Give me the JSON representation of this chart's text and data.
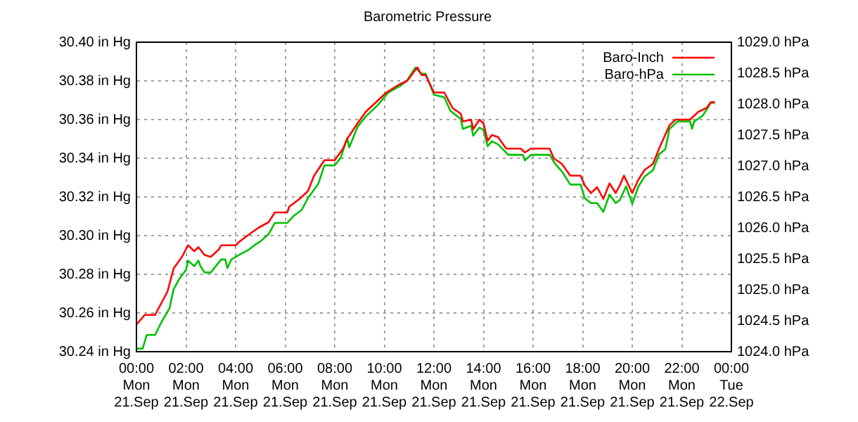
{
  "chart_data": {
    "type": "line",
    "title": "Barometric Pressure",
    "xlim": [
      "--09-21T00:00",
      "--09-22T00:00"
    ],
    "xticks": [
      {
        "value": "--09-21T00:00",
        "label": "00:00\nMon\n21.Sep"
      },
      {
        "value": "--09-21T02:00",
        "label": "02:00\nMon\n21.Sep"
      },
      {
        "value": "--09-21T04:00",
        "label": "04:00\nMon\n21.Sep"
      },
      {
        "value": "--09-21T06:00",
        "label": "06:00\nMon\n21.Sep"
      },
      {
        "value": "--09-21T08:00",
        "label": "08:00\nMon\n21.Sep"
      },
      {
        "value": "--09-21T10:00",
        "label": "10:00\nMon\n21.Sep"
      },
      {
        "value": "--09-21T12:00",
        "label": "12:00\nMon\n21.Sep"
      },
      {
        "value": "--09-21T14:00",
        "label": "14:00\nMon\n21.Sep"
      },
      {
        "value": "--09-21T16:00",
        "label": "16:00\nMon\n21.Sep"
      },
      {
        "value": "--09-21T18:00",
        "label": "18:00\nMon\n21.Sep"
      },
      {
        "value": "--09-21T20:00",
        "label": "20:00\nMon\n21.Sep"
      },
      {
        "value": "--09-21T22:00",
        "label": "22:00\nMon\n21.Sep"
      },
      {
        "value": "--09-22T00:00",
        "label": "00:00\nTue\n22.Sep"
      }
    ],
    "ylim": [
      30.24,
      30.4
    ],
    "yticks": [
      {
        "value": 30.24,
        "label": "30.24 in Hg"
      },
      {
        "value": 30.26,
        "label": "30.26 in Hg"
      },
      {
        "value": 30.28,
        "label": "30.28 in Hg"
      },
      {
        "value": 30.3,
        "label": "30.30 in Hg"
      },
      {
        "value": 30.32,
        "label": "30.32 in Hg"
      },
      {
        "value": 30.34,
        "label": "30.34 in Hg"
      },
      {
        "value": 30.36,
        "label": "30.36 in Hg"
      },
      {
        "value": 30.38,
        "label": "30.38 in Hg"
      },
      {
        "value": 30.4,
        "label": "30.40 in Hg"
      }
    ],
    "y2lim": [
      1024.0,
      1029.0
    ],
    "y2ticks": [
      {
        "value": 1024.0,
        "label": "1024.0 hPa"
      },
      {
        "value": 1024.5,
        "label": "1024.5 hPa"
      },
      {
        "value": 1025.0,
        "label": "1025.0 hPa"
      },
      {
        "value": 1025.5,
        "label": "1025.5 hPa"
      },
      {
        "value": 1026.0,
        "label": "1026.0 hPa"
      },
      {
        "value": 1026.5,
        "label": "1026.5 hPa"
      },
      {
        "value": 1027.0,
        "label": "1027.0 hPa"
      },
      {
        "value": 1027.5,
        "label": "1027.5 hPa"
      },
      {
        "value": 1028.0,
        "label": "1028.0 hPa"
      },
      {
        "value": 1028.5,
        "label": "1028.5 hPa"
      },
      {
        "value": 1029.0,
        "label": "1029.0 hPa"
      }
    ],
    "grid": true,
    "legend": "top right",
    "series": [
      {
        "name": "Baro-Inch",
        "color": "#ff0000",
        "x": [
          "--09-21T00:00",
          "--09-21T00:20",
          "--09-21T00:45",
          "--09-21T01:00",
          "--09-21T01:15",
          "--09-21T01:30",
          "--09-21T01:50",
          "--09-21T02:05",
          "--09-21T02:20",
          "--09-21T02:30",
          "--09-21T02:45",
          "--09-21T03:00",
          "--09-21T03:20",
          "--09-21T03:25",
          "--09-21T03:40",
          "--09-21T04:00",
          "--09-21T04:10",
          "--09-21T04:35",
          "--09-21T04:55",
          "--09-21T05:20",
          "--09-21T05:35",
          "--09-21T06:05",
          "--09-21T06:10",
          "--09-21T06:35",
          "--09-21T06:55",
          "--09-21T07:10",
          "--09-21T07:35",
          "--09-21T08:00",
          "--09-21T08:20",
          "--09-21T08:30",
          "--09-21T08:55",
          "--09-21T09:15",
          "--09-21T09:40",
          "--09-21T10:05",
          "--09-21T10:35",
          "--09-21T10:55",
          "--09-21T11:20",
          "--09-21T11:30",
          "--09-21T11:40",
          "--09-21T12:00",
          "--09-21T12:25",
          "--09-21T12:35",
          "--09-21T12:45",
          "--09-21T13:05",
          "--09-21T13:10",
          "--09-21T13:30",
          "--09-21T13:35",
          "--09-21T13:50",
          "--09-21T14:00",
          "--09-21T14:10",
          "--09-21T14:20",
          "--09-21T14:35",
          "--09-21T14:55",
          "--09-21T15:30",
          "--09-21T15:40",
          "--09-21T15:55",
          "--09-21T16:40",
          "--09-21T16:50",
          "--09-21T17:10",
          "--09-21T17:30",
          "--09-21T17:55",
          "--09-21T18:05",
          "--09-21T18:20",
          "--09-21T18:35",
          "--09-21T18:50",
          "--09-21T19:05",
          "--09-21T19:20",
          "--09-21T19:30",
          "--09-21T19:40",
          "--09-21T20:00",
          "--09-21T20:15",
          "--09-21T20:30",
          "--09-21T20:50",
          "--09-21T21:05",
          "--09-21T21:30",
          "--09-21T21:45",
          "--09-21T22:20",
          "--09-21T22:40",
          "--09-21T23:00",
          "--09-21T23:10",
          "--09-21T23:20"
        ],
        "values": [
          30.254,
          30.259,
          30.259,
          30.265,
          30.271,
          30.283,
          30.289,
          30.295,
          30.292,
          30.294,
          30.29,
          30.289,
          30.293,
          30.295,
          30.295,
          30.295,
          30.297,
          30.301,
          30.304,
          30.307,
          30.312,
          30.312,
          30.315,
          30.319,
          30.323,
          30.331,
          30.339,
          30.339,
          30.345,
          30.35,
          30.358,
          30.364,
          30.369,
          30.374,
          30.378,
          30.38,
          30.387,
          30.383,
          30.383,
          30.374,
          30.374,
          30.37,
          30.366,
          30.363,
          30.359,
          30.36,
          30.355,
          30.36,
          30.358,
          30.349,
          30.352,
          30.351,
          30.345,
          30.345,
          30.343,
          30.345,
          30.345,
          30.34,
          30.337,
          30.331,
          30.331,
          30.326,
          30.322,
          30.325,
          30.319,
          30.327,
          30.322,
          30.326,
          30.331,
          30.322,
          30.329,
          30.334,
          30.337,
          30.345,
          30.357,
          30.36,
          30.36,
          30.364,
          30.366,
          30.369,
          30.369
        ]
      },
      {
        "name": "Baro-hPa",
        "color": "#00c000",
        "axis": "y2",
        "x": [
          "--09-21T00:00",
          "--09-21T00:15",
          "--09-21T00:25",
          "--09-21T00:45",
          "--09-21T01:00",
          "--09-21T01:20",
          "--09-21T01:30",
          "--09-21T01:45",
          "--09-21T02:00",
          "--09-21T02:05",
          "--09-21T02:20",
          "--09-21T02:30",
          "--09-21T02:35",
          "--09-21T02:45",
          "--09-21T03:00",
          "--09-21T03:25",
          "--09-21T03:35",
          "--09-21T03:40",
          "--09-21T03:50",
          "--09-21T04:10",
          "--09-21T04:30",
          "--09-21T04:50",
          "--09-21T05:00",
          "--09-21T05:20",
          "--09-21T05:35",
          "--09-21T06:05",
          "--09-21T06:20",
          "--09-21T06:40",
          "--09-21T06:55",
          "--09-21T07:20",
          "--09-21T07:35",
          "--09-21T08:00",
          "--09-21T08:15",
          "--09-21T08:30",
          "--09-21T08:35",
          "--09-21T08:55",
          "--09-21T09:15",
          "--09-21T09:45",
          "--09-21T10:10",
          "--09-21T10:40",
          "--09-21T10:55",
          "--09-21T11:15",
          "--09-21T11:30",
          "--09-21T11:40",
          "--09-21T12:00",
          "--09-21T12:25",
          "--09-21T12:40",
          "--09-21T13:05",
          "--09-21T13:10",
          "--09-21T13:30",
          "--09-21T13:35",
          "--09-21T13:50",
          "--09-21T14:00",
          "--09-21T14:10",
          "--09-21T14:20",
          "--09-21T14:35",
          "--09-21T15:00",
          "--09-21T15:35",
          "--09-21T15:40",
          "--09-21T15:55",
          "--09-21T16:40",
          "--09-21T16:55",
          "--09-21T17:10",
          "--09-21T17:30",
          "--09-21T17:55",
          "--09-21T18:05",
          "--09-21T18:20",
          "--09-21T18:35",
          "--09-21T18:50",
          "--09-21T19:05",
          "--09-21T19:20",
          "--09-21T19:30",
          "--09-21T19:45",
          "--09-21T20:00",
          "--09-21T20:15",
          "--09-21T20:30",
          "--09-21T20:50",
          "--09-21T21:05",
          "--09-21T21:20",
          "--09-21T21:30",
          "--09-21T21:50",
          "--09-21T22:20",
          "--09-21T22:25",
          "--09-21T22:30",
          "--09-21T22:50",
          "--09-21T23:00",
          "--09-21T23:10",
          "--09-21T23:20"
        ],
        "values": [
          1024.05,
          1024.05,
          1024.27,
          1024.27,
          1024.47,
          1024.7,
          1025.01,
          1025.19,
          1025.32,
          1025.47,
          1025.38,
          1025.47,
          1025.38,
          1025.28,
          1025.28,
          1025.49,
          1025.49,
          1025.35,
          1025.49,
          1025.57,
          1025.64,
          1025.74,
          1025.78,
          1025.9,
          1026.08,
          1026.08,
          1026.19,
          1026.29,
          1026.48,
          1026.71,
          1027.01,
          1027.01,
          1027.14,
          1027.45,
          1027.3,
          1027.63,
          1027.8,
          1027.99,
          1028.19,
          1028.3,
          1028.38,
          1028.59,
          1028.49,
          1028.49,
          1028.15,
          1028.11,
          1027.89,
          1027.76,
          1027.6,
          1027.65,
          1027.49,
          1027.62,
          1027.58,
          1027.32,
          1027.4,
          1027.35,
          1027.18,
          1027.18,
          1027.09,
          1027.18,
          1027.18,
          1027.02,
          1026.91,
          1026.7,
          1026.7,
          1026.48,
          1026.4,
          1026.4,
          1026.26,
          1026.54,
          1026.4,
          1026.45,
          1026.67,
          1026.39,
          1026.67,
          1026.83,
          1026.93,
          1027.19,
          1027.27,
          1027.6,
          1027.72,
          1027.72,
          1027.6,
          1027.72,
          1027.81,
          1027.91,
          1028.02,
          1028.02
        ]
      }
    ]
  }
}
